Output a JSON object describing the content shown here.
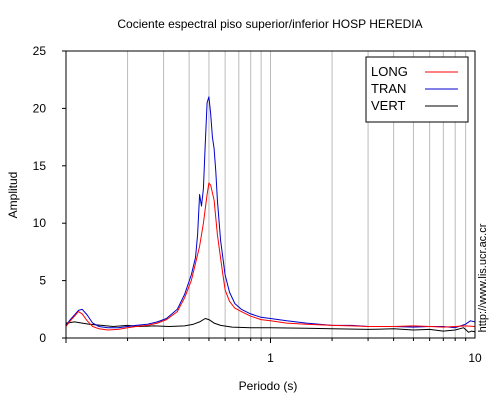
{
  "chart_data": {
    "type": "line",
    "title": "Cociente espectral piso superior/inferior  HOSP HEREDIA",
    "xlabel": "Periodo (s)",
    "ylabel": "Amplitud",
    "x_scale": "log",
    "xlim": [
      0.1,
      10
    ],
    "ylim": [
      0,
      25
    ],
    "x_ticks": [
      1,
      10
    ],
    "x_tick_labels": [
      "1",
      "10"
    ],
    "y_ticks": [
      0,
      5,
      10,
      15,
      20,
      25
    ],
    "y_tick_labels": [
      "0",
      "5",
      "10",
      "15",
      "20",
      "25"
    ],
    "grid": "vertical",
    "legend": "top-right",
    "annotation": "http://www.lis.ucr.ac.cr",
    "series": [
      {
        "name": "LONG",
        "color": "#ff0000",
        "points": [
          [
            0.1,
            1.0
          ],
          [
            0.105,
            1.5
          ],
          [
            0.11,
            1.9
          ],
          [
            0.115,
            2.3
          ],
          [
            0.12,
            2.1
          ],
          [
            0.127,
            1.5
          ],
          [
            0.135,
            1.0
          ],
          [
            0.145,
            0.8
          ],
          [
            0.16,
            0.7
          ],
          [
            0.18,
            0.75
          ],
          [
            0.2,
            0.9
          ],
          [
            0.22,
            1.0
          ],
          [
            0.25,
            1.1
          ],
          [
            0.28,
            1.3
          ],
          [
            0.31,
            1.6
          ],
          [
            0.35,
            2.3
          ],
          [
            0.38,
            3.5
          ],
          [
            0.41,
            5.0
          ],
          [
            0.43,
            6.5
          ],
          [
            0.45,
            8.0
          ],
          [
            0.47,
            10.0
          ],
          [
            0.49,
            12.5
          ],
          [
            0.5,
            13.5
          ],
          [
            0.51,
            13.3
          ],
          [
            0.53,
            12.0
          ],
          [
            0.55,
            9.0
          ],
          [
            0.58,
            6.0
          ],
          [
            0.6,
            4.2
          ],
          [
            0.63,
            3.2
          ],
          [
            0.67,
            2.6
          ],
          [
            0.72,
            2.3
          ],
          [
            0.8,
            1.9
          ],
          [
            0.9,
            1.6
          ],
          [
            1.0,
            1.5
          ],
          [
            1.2,
            1.3
          ],
          [
            1.5,
            1.2
          ],
          [
            2.0,
            1.1
          ],
          [
            2.5,
            1.05
          ],
          [
            3.0,
            1.0
          ],
          [
            4.0,
            1.0
          ],
          [
            5.0,
            1.05
          ],
          [
            6.0,
            1.0
          ],
          [
            7.0,
            0.95
          ],
          [
            8.0,
            1.0
          ],
          [
            9.0,
            1.05
          ],
          [
            10.0,
            1.0
          ]
        ]
      },
      {
        "name": "TRAN",
        "color": "#0000cc",
        "points": [
          [
            0.1,
            1.1
          ],
          [
            0.105,
            1.6
          ],
          [
            0.11,
            2.0
          ],
          [
            0.115,
            2.4
          ],
          [
            0.12,
            2.5
          ],
          [
            0.127,
            2.0
          ],
          [
            0.135,
            1.3
          ],
          [
            0.145,
            1.0
          ],
          [
            0.16,
            0.9
          ],
          [
            0.18,
            0.9
          ],
          [
            0.2,
            1.0
          ],
          [
            0.22,
            1.1
          ],
          [
            0.25,
            1.2
          ],
          [
            0.28,
            1.4
          ],
          [
            0.31,
            1.7
          ],
          [
            0.35,
            2.5
          ],
          [
            0.38,
            3.8
          ],
          [
            0.41,
            5.5
          ],
          [
            0.43,
            7.0
          ],
          [
            0.44,
            9.0
          ],
          [
            0.45,
            12.5
          ],
          [
            0.46,
            11.5
          ],
          [
            0.47,
            13.0
          ],
          [
            0.48,
            17.0
          ],
          [
            0.49,
            20.5
          ],
          [
            0.5,
            21.0
          ],
          [
            0.51,
            19.5
          ],
          [
            0.52,
            17.5
          ],
          [
            0.53,
            16.5
          ],
          [
            0.54,
            14.5
          ],
          [
            0.55,
            12.0
          ],
          [
            0.57,
            8.5
          ],
          [
            0.6,
            5.5
          ],
          [
            0.63,
            4.0
          ],
          [
            0.67,
            3.0
          ],
          [
            0.72,
            2.5
          ],
          [
            0.8,
            2.1
          ],
          [
            0.9,
            1.8
          ],
          [
            1.0,
            1.7
          ],
          [
            1.2,
            1.5
          ],
          [
            1.5,
            1.3
          ],
          [
            2.0,
            1.1
          ],
          [
            2.5,
            1.1
          ],
          [
            3.0,
            1.0
          ],
          [
            4.0,
            1.0
          ],
          [
            5.0,
            0.95
          ],
          [
            6.0,
            1.0
          ],
          [
            7.0,
            1.0
          ],
          [
            8.0,
            0.9
          ],
          [
            9.0,
            1.2
          ],
          [
            9.5,
            1.5
          ],
          [
            10.0,
            1.4
          ]
        ]
      },
      {
        "name": "VERT",
        "color": "#000000",
        "points": [
          [
            0.1,
            1.3
          ],
          [
            0.11,
            1.4
          ],
          [
            0.12,
            1.3
          ],
          [
            0.13,
            1.2
          ],
          [
            0.15,
            1.1
          ],
          [
            0.17,
            1.0
          ],
          [
            0.2,
            1.1
          ],
          [
            0.23,
            1.0
          ],
          [
            0.27,
            1.05
          ],
          [
            0.32,
            1.0
          ],
          [
            0.38,
            1.05
          ],
          [
            0.42,
            1.2
          ],
          [
            0.45,
            1.4
          ],
          [
            0.48,
            1.7
          ],
          [
            0.5,
            1.6
          ],
          [
            0.53,
            1.3
          ],
          [
            0.57,
            1.1
          ],
          [
            0.65,
            0.95
          ],
          [
            0.8,
            0.9
          ],
          [
            1.0,
            0.9
          ],
          [
            1.5,
            0.85
          ],
          [
            2.0,
            0.8
          ],
          [
            3.0,
            0.75
          ],
          [
            4.0,
            0.8
          ],
          [
            5.0,
            0.7
          ],
          [
            6.0,
            0.75
          ],
          [
            7.0,
            0.6
          ],
          [
            8.0,
            0.7
          ],
          [
            8.8,
            0.9
          ],
          [
            9.3,
            0.5
          ],
          [
            9.6,
            0.6
          ],
          [
            10.0,
            0.55
          ]
        ]
      }
    ]
  }
}
